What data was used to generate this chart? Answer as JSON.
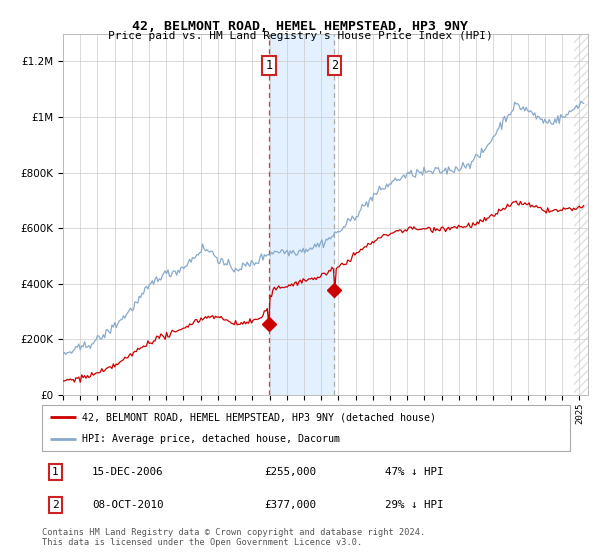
{
  "title": "42, BELMONT ROAD, HEMEL HEMPSTEAD, HP3 9NY",
  "subtitle": "Price paid vs. HM Land Registry's House Price Index (HPI)",
  "red_label": "42, BELMONT ROAD, HEMEL HEMPSTEAD, HP3 9NY (detached house)",
  "blue_label": "HPI: Average price, detached house, Dacorum",
  "annotation1_date": "15-DEC-2006",
  "annotation1_price": "£255,000",
  "annotation1_pct": "47% ↓ HPI",
  "annotation1_year": 2006.96,
  "annotation1_value": 255000,
  "annotation2_date": "08-OCT-2010",
  "annotation2_price": "£377,000",
  "annotation2_pct": "29% ↓ HPI",
  "annotation2_year": 2010.77,
  "annotation2_value": 377000,
  "footer": "Contains HM Land Registry data © Crown copyright and database right 2024.\nThis data is licensed under the Open Government Licence v3.0.",
  "ylim_max": 1300000,
  "xlim_start": 1995.0,
  "xlim_end": 2025.5,
  "shade_color": "#ddeeff",
  "red_color": "#cc0000",
  "blue_color": "#88aacc",
  "annotation_box_edge": "#cc2222"
}
